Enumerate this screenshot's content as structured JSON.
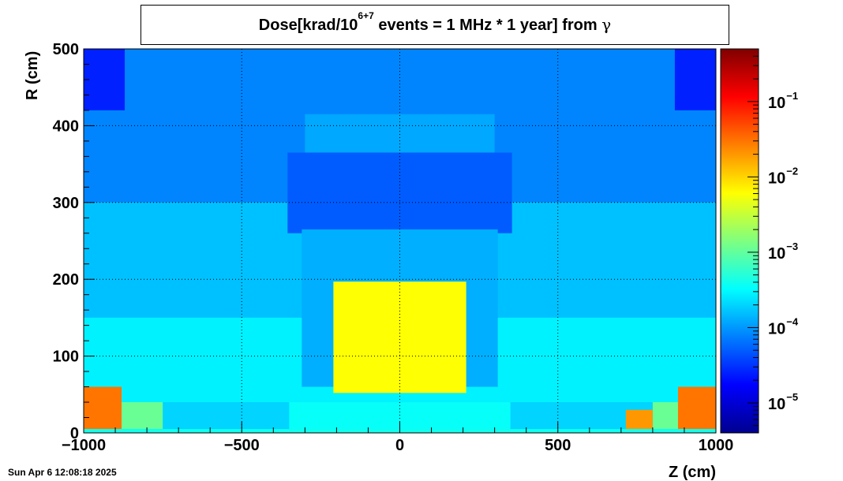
{
  "title": {
    "pre": "Dose[krad/10",
    "sup": "6+7",
    "post": " events = 1 MHz * 1 year] from ",
    "symbol": "γ"
  },
  "timestamp": "Sun Apr  6 12:08:18 2025",
  "chart_data": {
    "type": "heatmap",
    "xlabel": "Z (cm)",
    "ylabel": "R (cm)",
    "xlim": [
      -1000,
      1000
    ],
    "ylim": [
      0,
      500
    ],
    "x_ticks": [
      -1000,
      -500,
      0,
      500,
      1000
    ],
    "x_tick_labels": [
      "−1000",
      "−500",
      "0",
      "500",
      "1000"
    ],
    "y_ticks": [
      0,
      100,
      200,
      300,
      400,
      500
    ],
    "y_tick_labels": [
      "0",
      "100",
      "200",
      "300",
      "400",
      "500"
    ],
    "grid": true,
    "colorscale": "jet",
    "color_log": true,
    "color_range": [
      4e-06,
      0.5
    ],
    "colorbar_ticks": [
      {
        "value": 0.1,
        "base": "10",
        "exp": "−1"
      },
      {
        "value": 0.01,
        "base": "10",
        "exp": "−2"
      },
      {
        "value": 0.001,
        "base": "10",
        "exp": "−3"
      },
      {
        "value": 0.0001,
        "base": "10",
        "exp": "−4"
      },
      {
        "value": 1e-05,
        "base": "10",
        "exp": "−5"
      }
    ],
    "background_dose": 0.0002,
    "regions": [
      {
        "name": "outer-upper-field",
        "z": [
          -1000,
          1000
        ],
        "r": [
          300,
          500
        ],
        "dose": 8e-05
      },
      {
        "name": "mid-field",
        "z": [
          -1000,
          1000
        ],
        "r": [
          150,
          300
        ],
        "dose": 0.00016
      },
      {
        "name": "lower-field",
        "z": [
          -1000,
          1000
        ],
        "r": [
          40,
          150
        ],
        "dose": 0.00028
      },
      {
        "name": "barrel-top-cap",
        "z": [
          -300,
          300
        ],
        "r": [
          300,
          415
        ],
        "dose": 0.00012
      },
      {
        "name": "barrel-outer-shell",
        "z": [
          -355,
          355
        ],
        "r": [
          260,
          365
        ],
        "dose": 5e-05
      },
      {
        "name": "barrel-inner-region",
        "z": [
          -310,
          310
        ],
        "r": [
          60,
          265
        ],
        "dose": 0.00013
      },
      {
        "name": "central-calorimeter",
        "z": [
          -210,
          210
        ],
        "r": [
          52,
          197
        ],
        "dose": 0.006
      },
      {
        "name": "beam-region",
        "z": [
          -350,
          350
        ],
        "r": [
          5,
          40
        ],
        "dose": 0.00035
      },
      {
        "name": "forward-left-low",
        "z": [
          -1000,
          -750
        ],
        "r": [
          5,
          40
        ],
        "dose": 0.0011
      },
      {
        "name": "forward-right-low",
        "z": [
          800,
          1000
        ],
        "r": [
          5,
          40
        ],
        "dose": 0.0011
      },
      {
        "name": "forward-left-hot",
        "z": [
          -1000,
          -880
        ],
        "r": [
          5,
          60
        ],
        "dose": 0.03
      },
      {
        "name": "forward-right-hot",
        "z": [
          880,
          1000
        ],
        "r": [
          5,
          60
        ],
        "dose": 0.03
      },
      {
        "name": "forward-right-insert",
        "z": [
          715,
          800
        ],
        "r": [
          5,
          30
        ],
        "dose": 0.02
      },
      {
        "name": "beamline",
        "z": [
          -1000,
          1000
        ],
        "r": [
          0,
          5
        ],
        "dose": 0.0004
      },
      {
        "name": "corner-upper-left",
        "z": [
          -1000,
          -870
        ],
        "r": [
          420,
          500
        ],
        "dose": 2.5e-05
      },
      {
        "name": "corner-upper-right",
        "z": [
          870,
          1000
        ],
        "r": [
          420,
          500
        ],
        "dose": 2.5e-05
      }
    ]
  }
}
